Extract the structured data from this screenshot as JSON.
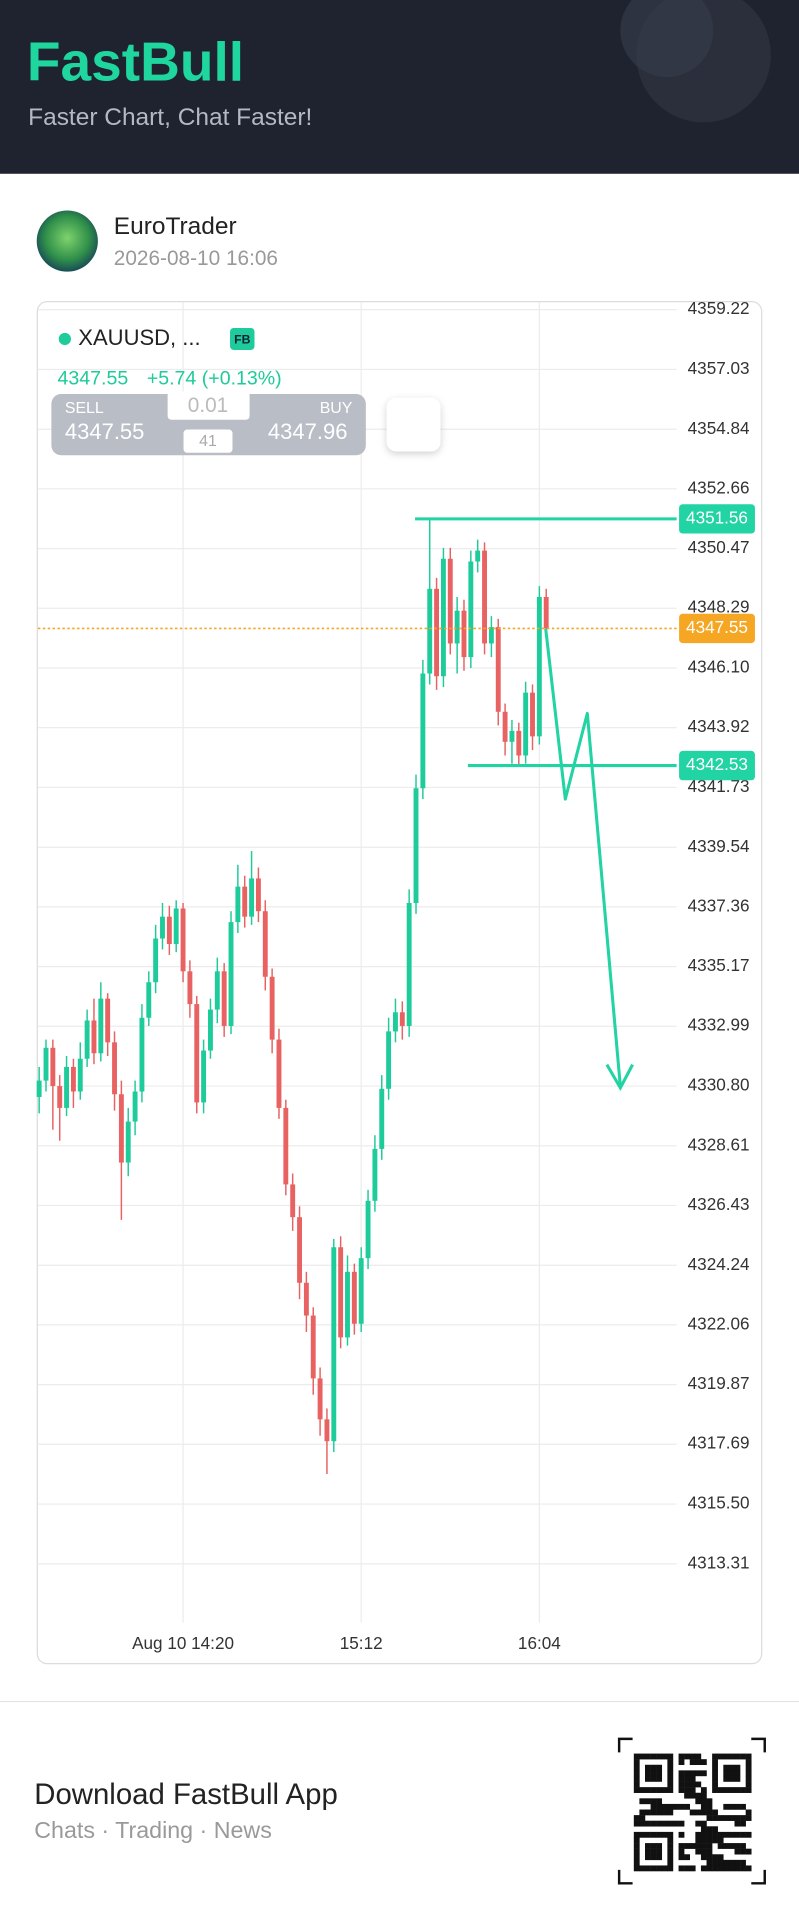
{
  "header": {
    "logo": "FastBull",
    "tagline": "Faster Chart, Chat Faster!"
  },
  "post": {
    "author": "EuroTrader",
    "timestamp": "2026-08-10 16:06"
  },
  "chart_data": {
    "type": "candlestick",
    "symbol": "XAUUSD, ...",
    "badge": "FB",
    "quote_price": 4347.55,
    "change": "+5.74 (+0.13%)",
    "sell_label": "SELL",
    "sell_price": 4347.55,
    "buy_label": "BUY",
    "buy_price": 4347.96,
    "lot": 0.01,
    "spread": 41,
    "categories": [
      null,
      null,
      null,
      null,
      null,
      null,
      null,
      null,
      null,
      null,
      null,
      null,
      null,
      null,
      null,
      null,
      null,
      null,
      null,
      null,
      null,
      "Aug 10 14:20",
      null,
      null,
      null,
      null,
      null,
      null,
      null,
      null,
      null,
      null,
      null,
      null,
      null,
      null,
      null,
      null,
      null,
      null,
      null,
      null,
      null,
      null,
      null,
      null,
      null,
      "15:12",
      null,
      null,
      null,
      null,
      null,
      null,
      null,
      null,
      null,
      null,
      null,
      null,
      null,
      null,
      null,
      null,
      null,
      null,
      null,
      null,
      null,
      null,
      null,
      null,
      null,
      "16:04",
      null
    ],
    "open": [
      4330.4,
      4331.0,
      4332.2,
      4330.8,
      4330.0,
      4331.5,
      4330.6,
      4331.8,
      4333.2,
      4332.0,
      4334.0,
      4332.4,
      4330.5,
      4328.0,
      4329.5,
      4330.6,
      4333.3,
      4334.6,
      4336.2,
      4337.0,
      4336.0,
      4337.3,
      4335.0,
      4333.8,
      4330.2,
      4332.1,
      4333.6,
      4335.0,
      4333.0,
      4336.8,
      4338.1,
      4337.0,
      4338.4,
      4337.2,
      4334.8,
      4332.5,
      4330.0,
      4327.2,
      4326.0,
      4323.6,
      4322.4,
      4320.1,
      4318.6,
      4317.8,
      4324.9,
      4321.6,
      4324.0,
      4322.1,
      4324.5,
      4326.6,
      4328.5,
      4330.7,
      4332.8,
      4333.5,
      4333.0,
      4337.5,
      4341.7,
      4345.9,
      4349.0,
      4345.8,
      4350.1,
      4347.0,
      4348.2,
      4346.5,
      4350.0,
      4350.4,
      4347.0,
      4347.6,
      4344.5,
      4343.4,
      4343.8,
      4342.9,
      4345.2,
      4343.6,
      4348.7
    ],
    "high": [
      4331.5,
      4332.5,
      4332.5,
      4331.2,
      4331.9,
      4331.8,
      4332.4,
      4333.6,
      4334.0,
      4334.6,
      4334.2,
      4332.8,
      4331.0,
      4330.0,
      4331.0,
      4333.8,
      4335.0,
      4336.7,
      4337.5,
      4337.4,
      4337.6,
      4337.5,
      4335.4,
      4334.1,
      4332.5,
      4334.0,
      4335.5,
      4335.3,
      4337.2,
      4338.9,
      4338.5,
      4339.4,
      4338.8,
      4337.6,
      4335.1,
      4332.9,
      4330.3,
      4327.6,
      4326.4,
      4324.0,
      4322.7,
      4320.5,
      4319.0,
      4325.2,
      4325.3,
      4324.6,
      4324.3,
      4324.9,
      4327.0,
      4329.0,
      4331.2,
      4333.3,
      4334.0,
      4333.9,
      4338.0,
      4342.2,
      4346.4,
      4351.56,
      4349.4,
      4350.5,
      4350.5,
      4348.7,
      4348.6,
      4350.4,
      4350.8,
      4350.7,
      4348.0,
      4347.9,
      4344.8,
      4344.2,
      4344.1,
      4345.6,
      4345.5,
      4349.1,
      4349.0
    ],
    "low": [
      4329.8,
      4330.6,
      4329.2,
      4328.8,
      4329.7,
      4330.0,
      4330.3,
      4331.5,
      4331.6,
      4331.7,
      4331.9,
      4329.9,
      4325.9,
      4327.5,
      4329.0,
      4330.2,
      4333.0,
      4334.2,
      4335.8,
      4335.6,
      4335.7,
      4334.6,
      4333.3,
      4329.8,
      4329.8,
      4331.8,
      4333.1,
      4332.6,
      4332.7,
      4336.4,
      4336.6,
      4336.7,
      4336.8,
      4334.3,
      4332.0,
      4329.6,
      4326.8,
      4325.5,
      4323.0,
      4321.8,
      4319.5,
      4318.0,
      4316.6,
      4317.4,
      4321.2,
      4321.3,
      4321.7,
      4321.8,
      4324.1,
      4326.2,
      4328.1,
      4330.3,
      4332.4,
      4332.5,
      4332.6,
      4337.1,
      4341.3,
      4345.5,
      4345.3,
      4345.4,
      4346.6,
      4345.9,
      4346.0,
      4346.1,
      4349.6,
      4346.6,
      4346.5,
      4344.0,
      4342.9,
      4342.6,
      4342.53,
      4342.6,
      4343.1,
      4343.3,
      4347.2
    ],
    "close": [
      4331.0,
      4332.2,
      4330.8,
      4330.0,
      4331.5,
      4330.6,
      4331.8,
      4333.2,
      4332.0,
      4334.0,
      4332.4,
      4330.5,
      4328.0,
      4329.5,
      4330.6,
      4333.3,
      4334.6,
      4336.2,
      4337.0,
      4336.0,
      4337.3,
      4335.0,
      4333.8,
      4330.2,
      4332.1,
      4333.6,
      4335.0,
      4333.0,
      4336.8,
      4338.1,
      4337.0,
      4338.4,
      4337.2,
      4334.8,
      4332.5,
      4330.0,
      4327.2,
      4326.0,
      4323.6,
      4322.4,
      4320.1,
      4318.6,
      4317.8,
      4324.9,
      4321.6,
      4324.0,
      4322.1,
      4324.5,
      4326.6,
      4328.5,
      4330.7,
      4332.8,
      4333.5,
      4333.0,
      4337.5,
      4341.7,
      4345.9,
      4349.0,
      4345.8,
      4350.1,
      4347.0,
      4348.2,
      4346.5,
      4350.0,
      4350.4,
      4347.0,
      4347.6,
      4344.5,
      4343.4,
      4343.8,
      4342.9,
      4345.2,
      4343.6,
      4348.7,
      4347.55
    ],
    "up_color": "#1ecb9a",
    "down_color": "#e86262",
    "ylim": [
      4311.2,
      4359.5
    ],
    "yticks": [
      4359.22,
      4357.03,
      4354.84,
      4352.66,
      4350.47,
      4348.29,
      {
        "value": 4346.1,
        "label": "4346.10"
      },
      4343.92,
      4341.73,
      4339.54,
      4337.36,
      4335.17,
      4332.99,
      {
        "value": 4330.8,
        "label": "4330.80"
      },
      4328.61,
      4326.43,
      4324.24,
      4322.06,
      4319.87,
      4317.69,
      {
        "value": 4315.5,
        "label": "4315.50"
      },
      4313.31
    ],
    "grid": true,
    "price_lines": [
      {
        "value": 4351.56,
        "color": "#22d3a4"
      },
      {
        "value": 4342.53,
        "color": "#22d3a4"
      }
    ],
    "current_price": {
      "value": 4347.55,
      "color": "#f5a623"
    }
  },
  "footer": {
    "title": "Download FastBull App",
    "subtitle": "Chats · Trading · News"
  }
}
